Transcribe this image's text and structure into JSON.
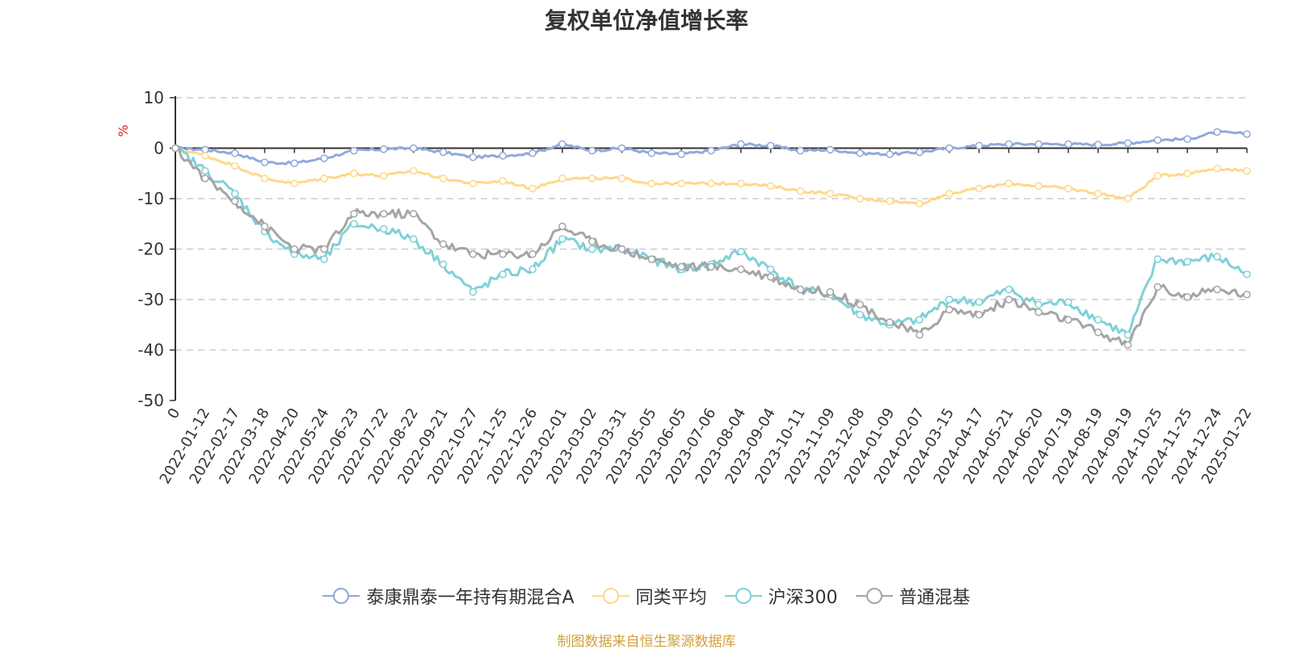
{
  "chart_data": {
    "type": "line",
    "title": "复权单位净值增长率",
    "ylabel": "%",
    "ylim": [
      -50,
      10
    ],
    "yticks": [
      "10",
      "0",
      "-10",
      "-20",
      "-30",
      "-40",
      "-50"
    ],
    "categories": [
      "0",
      "2022-01-12",
      "2022-02-17",
      "2022-03-18",
      "2022-04-20",
      "2022-05-24",
      "2022-06-23",
      "2022-07-22",
      "2022-08-22",
      "2022-09-21",
      "2022-10-27",
      "2022-11-25",
      "2022-12-26",
      "2023-02-01",
      "2023-03-02",
      "2023-03-31",
      "2023-05-05",
      "2023-06-05",
      "2023-07-06",
      "2023-08-04",
      "2023-09-04",
      "2023-10-11",
      "2023-11-09",
      "2023-12-08",
      "2024-01-09",
      "2024-02-07",
      "2024-03-15",
      "2024-04-17",
      "2024-05-21",
      "2024-06-20",
      "2024-07-19",
      "2024-08-19",
      "2024-09-19",
      "2024-10-25",
      "2024-11-25",
      "2024-12-24",
      "2025-01-22"
    ],
    "series": [
      {
        "name": "泰康鼎泰一年持有期混合A",
        "color": "#8faadc",
        "values": [
          0,
          -0.3,
          -1.0,
          -2.8,
          -3.0,
          -2.0,
          -0.5,
          -0.2,
          0,
          -0.8,
          -1.8,
          -1.5,
          -1.0,
          0.8,
          -0.5,
          0,
          -1.0,
          -1.2,
          -0.5,
          0.8,
          0.5,
          -0.5,
          -0.3,
          -1.0,
          -1.2,
          -0.8,
          0,
          0.5,
          0.8,
          0.8,
          0.8,
          0.7,
          1.0,
          1.6,
          1.8,
          3.2,
          2.8
        ]
      },
      {
        "name": "同类平均",
        "color": "#ffd88a",
        "values": [
          0,
          -1.5,
          -3.5,
          -6.0,
          -7.0,
          -6.0,
          -5.0,
          -5.5,
          -4.5,
          -6.0,
          -7.0,
          -6.5,
          -8.0,
          -6.0,
          -6.0,
          -6.0,
          -7.0,
          -7.0,
          -7.0,
          -7.0,
          -7.5,
          -8.5,
          -9.0,
          -10.0,
          -10.5,
          -11.0,
          -9.0,
          -8.0,
          -7.0,
          -7.5,
          -8.0,
          -9.0,
          -10.0,
          -5.5,
          -5.0,
          -4.0,
          -4.5
        ]
      },
      {
        "name": "沪深300",
        "color": "#7fd1d8",
        "values": [
          0,
          -4.5,
          -9.0,
          -16.5,
          -21.0,
          -22.0,
          -15.0,
          -16.0,
          -18.0,
          -23.0,
          -28.5,
          -25.0,
          -24.0,
          -18.0,
          -20.0,
          -20.0,
          -22.0,
          -24.0,
          -23.0,
          -20.5,
          -24.0,
          -28.0,
          -29.0,
          -33.0,
          -35.0,
          -34.0,
          -30.0,
          -30.5,
          -28.0,
          -31.0,
          -30.5,
          -34.0,
          -37.0,
          -22.0,
          -22.5,
          -21.5,
          -25.0
        ]
      },
      {
        "name": "普通混基",
        "color": "#a5a5a5",
        "values": [
          0,
          -6.0,
          -10.5,
          -15.5,
          -20.0,
          -20.0,
          -13.0,
          -13.0,
          -13.0,
          -19.0,
          -21.0,
          -21.0,
          -21.0,
          -15.5,
          -18.5,
          -20.0,
          -22.0,
          -23.5,
          -23.5,
          -24.0,
          -25.5,
          -28.0,
          -28.5,
          -31.0,
          -34.5,
          -37.0,
          -32.0,
          -33.0,
          -30.0,
          -32.5,
          -34.0,
          -36.5,
          -39.0,
          -27.5,
          -29.5,
          -28.0,
          -29.0
        ]
      }
    ]
  },
  "source_note": "制图数据来自恒生聚源数据库"
}
